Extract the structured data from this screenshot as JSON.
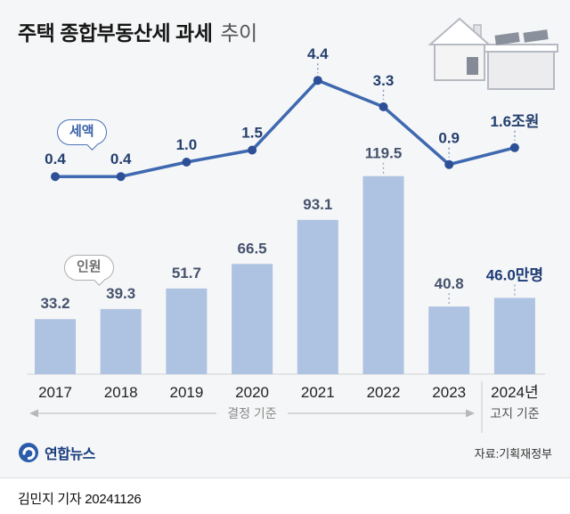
{
  "header": {
    "title_strong": "주택 종합부동산세 과세",
    "title_light": "추이"
  },
  "chart_data": {
    "type": "bar+line",
    "categories": [
      "2017",
      "2018",
      "2019",
      "2020",
      "2021",
      "2022",
      "2023",
      "2024년"
    ],
    "series": [
      {
        "name": "세액",
        "type": "line",
        "unit": "조원",
        "values": [
          0.4,
          0.4,
          1.0,
          1.5,
          4.4,
          3.3,
          0.9,
          1.6
        ],
        "labels": [
          "0.4",
          "0.4",
          "1.0",
          "1.5",
          "4.4",
          "3.3",
          "0.9",
          "1.6조원"
        ],
        "color": "#3e68b0"
      },
      {
        "name": "인원",
        "type": "bar",
        "unit": "만명",
        "values": [
          33.2,
          39.3,
          51.7,
          66.5,
          93.1,
          119.5,
          40.8,
          46.0
        ],
        "labels": [
          "33.2",
          "39.3",
          "51.7",
          "66.5",
          "93.1",
          "119.5",
          "40.8",
          "46.0만명"
        ],
        "color": "#aec2e2"
      }
    ],
    "legend": {
      "line_label": "세액",
      "bar_label": "인원"
    },
    "axis_notes": {
      "left_span": "결정 기준",
      "right_span": "고지 기준"
    },
    "ylim_bar": [
      0,
      130
    ],
    "ylim_line": [
      0,
      5
    ],
    "grid": false,
    "legend_position": "floating-bubbles"
  },
  "footer": {
    "logo_text": "연합뉴스",
    "source": "자료:기획재정부"
  },
  "byline": "김민지 기자  20241126"
}
